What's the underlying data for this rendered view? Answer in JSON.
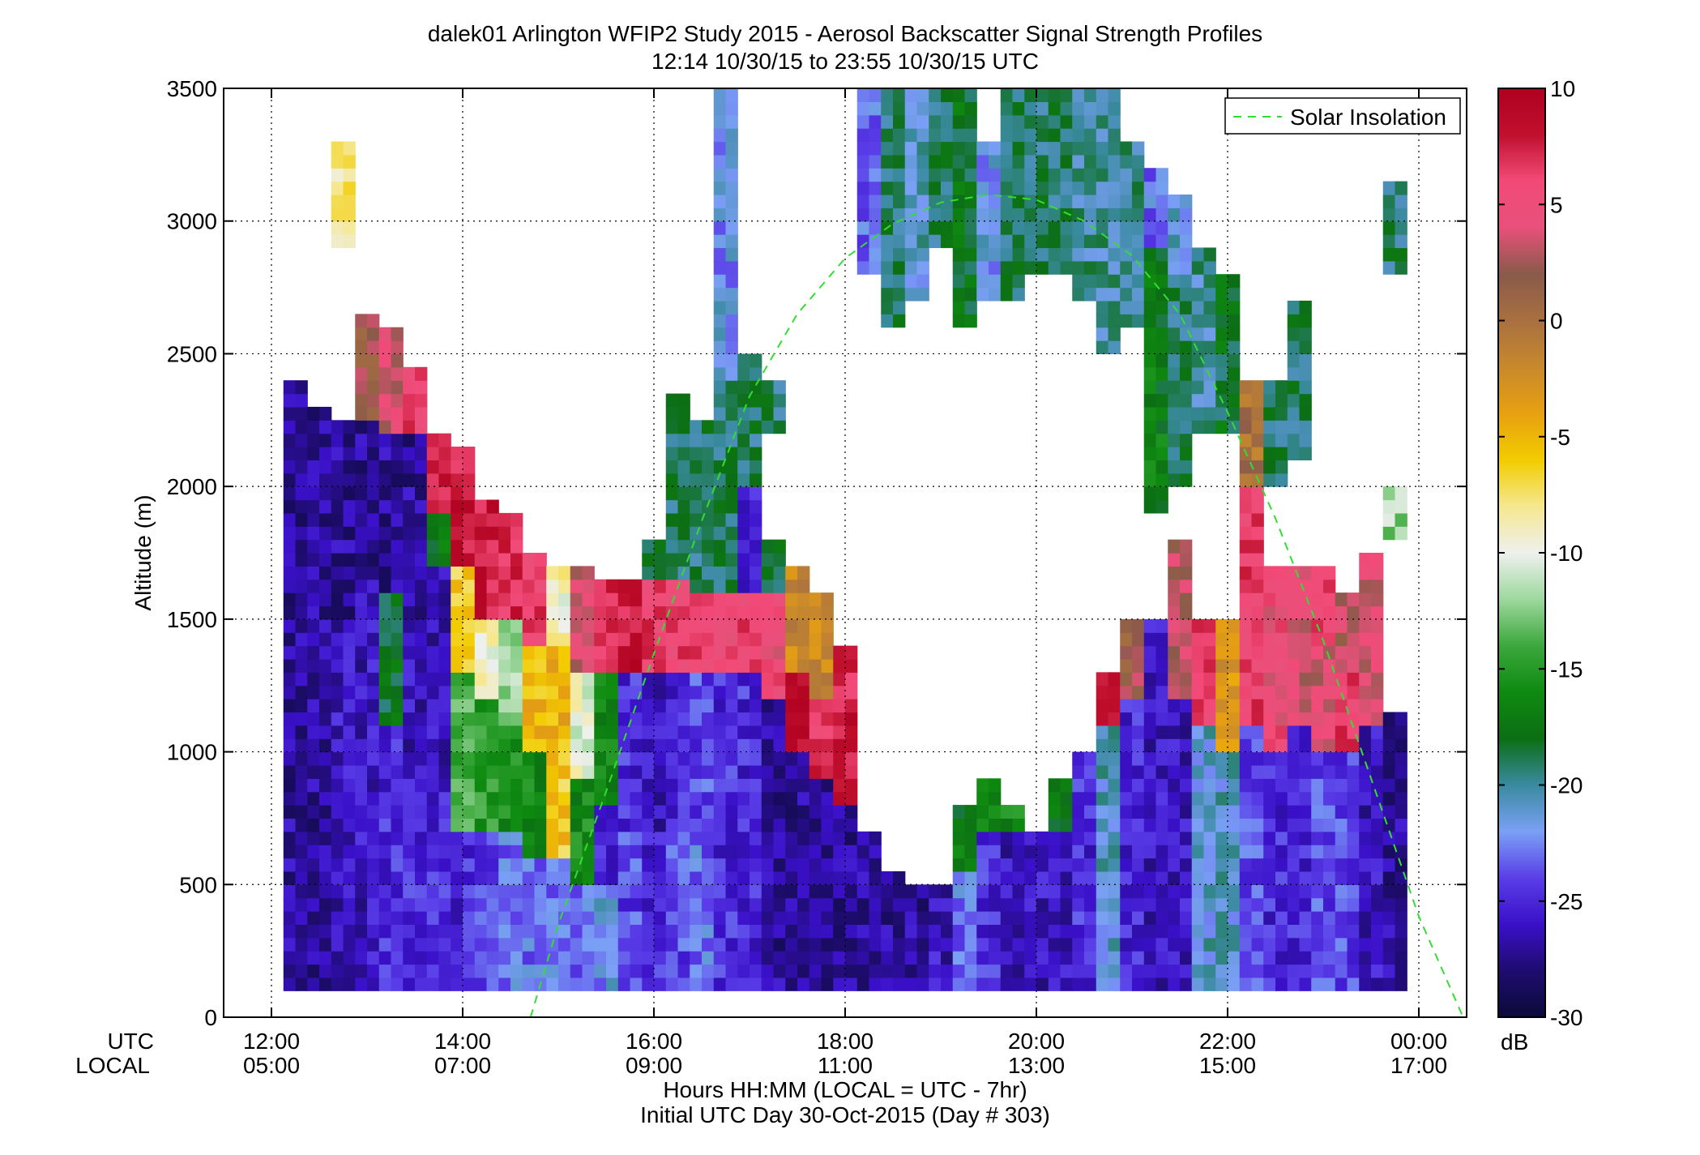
{
  "chart_data": {
    "type": "heatmap",
    "title": "dalek01 Arlington WFIP2 Study 2015 - Aerosol Backscatter Signal Strength Profiles",
    "subtitle": "12:14 10/30/15 to 23:55 10/30/15  UTC",
    "ylabel": "Altitude (m)",
    "xlabel": "Hours HH:MM  (LOCAL = UTC - 7hr)",
    "xlabel2": "Initial UTC Day 30-Oct-2015 (Day # 303)",
    "row_label_utc": "UTC",
    "row_label_local": "LOCAL",
    "x_range_hours_utc": [
      11.5,
      24.5
    ],
    "ylim": [
      0,
      3500
    ],
    "y_ticks": [
      0,
      500,
      1000,
      1500,
      2000,
      2500,
      3000,
      3500
    ],
    "x_ticks": [
      {
        "hour": 12,
        "utc": "12:00",
        "local": "05:00"
      },
      {
        "hour": 14,
        "utc": "14:00",
        "local": "07:00"
      },
      {
        "hour": 16,
        "utc": "16:00",
        "local": "09:00"
      },
      {
        "hour": 18,
        "utc": "18:00",
        "local": "11:00"
      },
      {
        "hour": 20,
        "utc": "20:00",
        "local": "13:00"
      },
      {
        "hour": 22,
        "utc": "22:00",
        "local": "15:00"
      },
      {
        "hour": 24,
        "utc": "00:00",
        "local": "17:00"
      }
    ],
    "grid": true,
    "colorbar": {
      "range_db": [
        -30,
        10
      ],
      "ticks": [
        -30,
        -25,
        -20,
        -15,
        -10,
        -5,
        0,
        5,
        10
      ],
      "unit": "dB",
      "colors": [
        "#0b0a3a",
        "#1e0c6e",
        "#3a10c8",
        "#5a3ee8",
        "#7aa0f5",
        "#3a8aa0",
        "#0c6e14",
        "#0e8a10",
        "#3ca83c",
        "#9ed89e",
        "#eef0ee",
        "#f5e890",
        "#f2cc00",
        "#e8a010",
        "#c8892c",
        "#a87040",
        "#8a5a4a",
        "#e8507a",
        "#f24a78",
        "#c0102e",
        "#b00020"
      ]
    },
    "legend": {
      "label": "Solar Insolation",
      "placement": "top-right",
      "color": "#33dd33"
    },
    "solar_insolation": {
      "x_hours": [
        14.71,
        15.0,
        15.5,
        16.0,
        16.5,
        17.0,
        17.5,
        18.0,
        18.5,
        19.0,
        19.5,
        20.0,
        20.5,
        21.0,
        21.5,
        22.0,
        22.5,
        23.0,
        23.5,
        24.0,
        24.5
      ],
      "y_m": [
        0,
        350,
        850,
        1370,
        1870,
        2340,
        2650,
        2860,
        2990,
        3070,
        3100,
        3080,
        3000,
        2870,
        2650,
        2280,
        1880,
        1420,
        900,
        380,
        -30
      ]
    },
    "profiles": [
      {
        "t": 12.25,
        "top": 2400,
        "layers": [
          [
            100,
            2400,
            -27
          ]
        ]
      },
      {
        "t": 12.5,
        "top": 2300,
        "layers": [
          [
            100,
            2300,
            -27
          ]
        ]
      },
      {
        "t": 12.75,
        "top": 3300,
        "layers": [
          [
            100,
            1500,
            -26
          ],
          [
            1500,
            2250,
            -27
          ],
          [
            2900,
            3300,
            -8
          ]
        ]
      },
      {
        "t": 13.0,
        "top": 2650,
        "layers": [
          [
            100,
            1700,
            -26
          ],
          [
            1700,
            2250,
            -27
          ],
          [
            2250,
            2650,
            2
          ]
        ]
      },
      {
        "t": 13.25,
        "top": 2600,
        "layers": [
          [
            100,
            1100,
            -25
          ],
          [
            1100,
            1600,
            -18
          ],
          [
            1600,
            2200,
            -27
          ],
          [
            2200,
            2600,
            4
          ]
        ]
      },
      {
        "t": 13.5,
        "top": 2450,
        "layers": [
          [
            100,
            1000,
            -25
          ],
          [
            1000,
            1500,
            -26
          ],
          [
            1500,
            2200,
            -27
          ],
          [
            2200,
            2450,
            6
          ]
        ]
      },
      {
        "t": 13.75,
        "top": 2200,
        "layers": [
          [
            100,
            900,
            -25
          ],
          [
            900,
            1700,
            -26
          ],
          [
            1700,
            1900,
            -17
          ],
          [
            1900,
            2200,
            8
          ]
        ]
      },
      {
        "t": 14.0,
        "top": 2150,
        "layers": [
          [
            100,
            700,
            -25
          ],
          [
            700,
            1300,
            -14
          ],
          [
            1300,
            1700,
            -6
          ],
          [
            1700,
            2150,
            8
          ]
        ]
      },
      {
        "t": 14.25,
        "top": 1950,
        "layers": [
          [
            100,
            700,
            -24
          ],
          [
            700,
            1200,
            -15
          ],
          [
            1200,
            1500,
            -9
          ],
          [
            1500,
            1950,
            8
          ]
        ]
      },
      {
        "t": 14.5,
        "top": 1900,
        "layers": [
          [
            100,
            700,
            -23
          ],
          [
            700,
            1100,
            -16
          ],
          [
            1100,
            1500,
            -12
          ],
          [
            1500,
            1900,
            7
          ]
        ]
      },
      {
        "t": 14.75,
        "top": 1750,
        "layers": [
          [
            100,
            600,
            -23
          ],
          [
            600,
            1000,
            -16
          ],
          [
            1000,
            1400,
            -5
          ],
          [
            1400,
            1750,
            6
          ]
        ]
      },
      {
        "t": 15.0,
        "top": 1700,
        "layers": [
          [
            100,
            600,
            -23
          ],
          [
            600,
            1000,
            -6
          ],
          [
            1000,
            1400,
            -5
          ],
          [
            1400,
            1700,
            -9
          ]
        ]
      },
      {
        "t": 15.25,
        "top": 1700,
        "layers": [
          [
            100,
            500,
            -23
          ],
          [
            500,
            900,
            -16
          ],
          [
            900,
            1300,
            -10
          ],
          [
            1300,
            1700,
            4
          ]
        ]
      },
      {
        "t": 15.5,
        "top": 1650,
        "layers": [
          [
            100,
            500,
            -22
          ],
          [
            500,
            800,
            -25
          ],
          [
            800,
            1300,
            -16
          ],
          [
            1300,
            1650,
            7
          ]
        ]
      },
      {
        "t": 15.75,
        "top": 1650,
        "layers": [
          [
            100,
            700,
            -24
          ],
          [
            700,
            1300,
            -25
          ],
          [
            1300,
            1650,
            8
          ]
        ]
      },
      {
        "t": 16.0,
        "top": 1800,
        "layers": [
          [
            100,
            700,
            -25
          ],
          [
            700,
            1300,
            -26
          ],
          [
            1300,
            1650,
            6
          ],
          [
            1650,
            1800,
            -19
          ]
        ]
      },
      {
        "t": 16.25,
        "top": 2350,
        "layers": [
          [
            100,
            700,
            -24
          ],
          [
            700,
            1300,
            -25
          ],
          [
            1300,
            1650,
            6
          ],
          [
            1650,
            2350,
            -19
          ]
        ]
      },
      {
        "t": 16.5,
        "top": 2250,
        "layers": [
          [
            100,
            700,
            -23
          ],
          [
            700,
            1300,
            -24
          ],
          [
            1300,
            1600,
            6
          ],
          [
            1600,
            2250,
            -19
          ]
        ]
      },
      {
        "t": 16.75,
        "top": 3500,
        "layers": [
          [
            100,
            1300,
            -25
          ],
          [
            1300,
            1600,
            5
          ],
          [
            1600,
            2400,
            -19
          ],
          [
            2400,
            3500,
            -22
          ]
        ]
      },
      {
        "t": 17.0,
        "top": 2500,
        "layers": [
          [
            100,
            1300,
            -25
          ],
          [
            1300,
            1600,
            6
          ],
          [
            1600,
            2000,
            -25
          ],
          [
            2000,
            2500,
            -19
          ]
        ]
      },
      {
        "t": 17.25,
        "top": 2400,
        "layers": [
          [
            100,
            1200,
            -27
          ],
          [
            1200,
            1600,
            5
          ],
          [
            1600,
            1800,
            -18
          ],
          [
            2200,
            2400,
            -19
          ]
        ]
      },
      {
        "t": 17.5,
        "top": 1700,
        "layers": [
          [
            100,
            1000,
            -27
          ],
          [
            1000,
            1300,
            8
          ],
          [
            1300,
            1700,
            -2
          ]
        ]
      },
      {
        "t": 17.75,
        "top": 1600,
        "layers": [
          [
            100,
            900,
            -27
          ],
          [
            900,
            1200,
            7
          ],
          [
            1200,
            1600,
            -2
          ]
        ]
      },
      {
        "t": 18.0,
        "top": 1400,
        "layers": [
          [
            100,
            800,
            -27
          ],
          [
            800,
            1200,
            8
          ],
          [
            1200,
            1400,
            7
          ]
        ]
      },
      {
        "t": 18.25,
        "top": 3500,
        "layers": [
          [
            100,
            700,
            -27
          ],
          [
            2800,
            3500,
            -23
          ]
        ]
      },
      {
        "t": 18.5,
        "top": 3500,
        "layers": [
          [
            100,
            550,
            -27
          ],
          [
            2600,
            3500,
            -19
          ]
        ]
      },
      {
        "t": 18.75,
        "top": 3500,
        "layers": [
          [
            100,
            500,
            -27
          ],
          [
            2700,
            3500,
            -21
          ]
        ]
      },
      {
        "t": 19.0,
        "top": 3500,
        "layers": [
          [
            100,
            500,
            -26
          ],
          [
            2900,
            3500,
            -19
          ]
        ]
      },
      {
        "t": 19.25,
        "top": 3500,
        "layers": [
          [
            100,
            550,
            -23
          ],
          [
            550,
            800,
            -17
          ],
          [
            2600,
            3500,
            -18
          ]
        ]
      },
      {
        "t": 19.5,
        "top": 3300,
        "layers": [
          [
            100,
            700,
            -25
          ],
          [
            700,
            900,
            -17
          ],
          [
            2700,
            3300,
            -22
          ]
        ]
      },
      {
        "t": 19.75,
        "top": 3500,
        "layers": [
          [
            100,
            700,
            -26
          ],
          [
            700,
            800,
            -16
          ],
          [
            2700,
            3500,
            -19
          ]
        ]
      },
      {
        "t": 20.0,
        "top": 3500,
        "layers": [
          [
            100,
            700,
            -26
          ],
          [
            2800,
            3500,
            -19
          ]
        ]
      },
      {
        "t": 20.25,
        "top": 3500,
        "layers": [
          [
            100,
            700,
            -26
          ],
          [
            700,
            900,
            -18
          ],
          [
            2800,
            3500,
            -19
          ]
        ]
      },
      {
        "t": 20.5,
        "top": 3500,
        "layers": [
          [
            100,
            1000,
            -25
          ],
          [
            2700,
            3500,
            -20
          ]
        ]
      },
      {
        "t": 20.75,
        "top": 3500,
        "layers": [
          [
            100,
            1100,
            -21
          ],
          [
            1100,
            1300,
            7
          ],
          [
            2500,
            3500,
            -20
          ]
        ]
      },
      {
        "t": 21.0,
        "top": 3300,
        "layers": [
          [
            100,
            1200,
            -25
          ],
          [
            1200,
            1500,
            2
          ],
          [
            2600,
            3300,
            -20
          ]
        ]
      },
      {
        "t": 21.25,
        "top": 3200,
        "layers": [
          [
            100,
            1500,
            -26
          ],
          [
            1900,
            2900,
            -17
          ],
          [
            2900,
            3200,
            -23
          ]
        ]
      },
      {
        "t": 21.5,
        "top": 3100,
        "layers": [
          [
            100,
            1200,
            -26
          ],
          [
            1200,
            1800,
            3
          ],
          [
            2000,
            2800,
            -19
          ],
          [
            2800,
            3100,
            -21
          ]
        ]
      },
      {
        "t": 21.75,
        "top": 2900,
        "layers": [
          [
            100,
            1100,
            -21
          ],
          [
            1100,
            1500,
            6
          ],
          [
            2200,
            2900,
            -20
          ]
        ]
      },
      {
        "t": 22.0,
        "top": 2800,
        "layers": [
          [
            100,
            1000,
            -21
          ],
          [
            1000,
            1500,
            -3
          ],
          [
            2200,
            2800,
            -18
          ]
        ]
      },
      {
        "t": 22.25,
        "top": 2400,
        "layers": [
          [
            100,
            1100,
            -24
          ],
          [
            1100,
            2000,
            6
          ],
          [
            2000,
            2400,
            0
          ]
        ]
      },
      {
        "t": 22.5,
        "top": 2400,
        "layers": [
          [
            100,
            1000,
            -25
          ],
          [
            1000,
            1700,
            5
          ],
          [
            2000,
            2400,
            -19
          ]
        ]
      },
      {
        "t": 22.75,
        "top": 2700,
        "layers": [
          [
            100,
            1100,
            -25
          ],
          [
            1100,
            1700,
            4
          ],
          [
            2100,
            2700,
            -19
          ]
        ]
      },
      {
        "t": 23.0,
        "top": 1700,
        "layers": [
          [
            100,
            1000,
            -24
          ],
          [
            1000,
            1400,
            4
          ],
          [
            1400,
            1700,
            6
          ]
        ]
      },
      {
        "t": 23.25,
        "top": 1600,
        "layers": [
          [
            100,
            1000,
            -24
          ],
          [
            1000,
            1300,
            6
          ],
          [
            1300,
            1600,
            3
          ]
        ]
      },
      {
        "t": 23.5,
        "top": 1750,
        "layers": [
          [
            100,
            1100,
            -26
          ],
          [
            1100,
            1750,
            4
          ]
        ]
      },
      {
        "t": 23.75,
        "top": 3150,
        "layers": [
          [
            100,
            1150,
            -27
          ],
          [
            1800,
            2000,
            -12
          ],
          [
            2800,
            3150,
            -19
          ]
        ]
      }
    ]
  }
}
